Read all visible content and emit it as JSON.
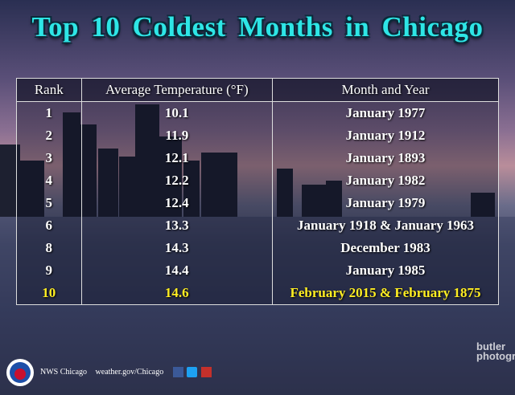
{
  "header": {
    "title": "Top 10 Coldest Months in Chicago"
  },
  "table": {
    "columns": [
      "Rank",
      "Average Temperature (°F)",
      "Month and Year"
    ],
    "rows": [
      [
        1,
        10.1,
        "January 1977"
      ],
      [
        2,
        11.9,
        "January 1912"
      ],
      [
        3,
        12.1,
        "January 1893"
      ],
      [
        4,
        12.2,
        "January 1982"
      ],
      [
        5,
        12.4,
        "January 1979"
      ],
      [
        6,
        13.3,
        "January 1918  &  January 1963"
      ],
      [
        8,
        14.3,
        "December 1983"
      ],
      [
        9,
        14.4,
        "January 1985"
      ],
      [
        10,
        14.6,
        "February  2015  &  February 1875"
      ]
    ]
  },
  "footer": {
    "office": "NWS Chicago",
    "website": "weather.gov/Chicago"
  },
  "watermark": [
    "butler",
    "photogra"
  ]
}
